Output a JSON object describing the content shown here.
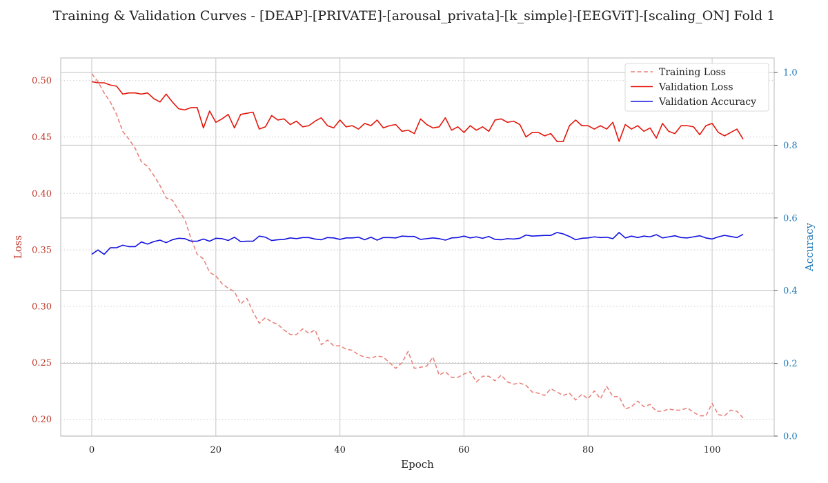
{
  "chart_data": {
    "type": "line",
    "title": "Training & Validation Curves - [DEAP]-[PRIVATE]-[arousal_privata]-[k_simple]-[EEGViT]-[scaling_ON] Fold 1",
    "xlabel": "Epoch",
    "ylabel_left": "Loss",
    "ylabel_right": "Accuracy",
    "xlim": [
      -5,
      110
    ],
    "ylim_left": [
      0.185,
      0.52
    ],
    "ylim_right": [
      0.0,
      1.04
    ],
    "xticks": [
      0,
      20,
      40,
      60,
      80,
      100
    ],
    "yticks_left": [
      0.2,
      0.25,
      0.3,
      0.35,
      0.4,
      0.45,
      0.5
    ],
    "yticks_right": [
      0.0,
      0.2,
      0.4,
      0.6,
      0.8,
      1.0
    ],
    "grid": true,
    "legend_position": "top-right",
    "x": [
      0,
      1,
      2,
      3,
      4,
      5,
      6,
      7,
      8,
      9,
      10,
      11,
      12,
      13,
      14,
      15,
      16,
      17,
      18,
      19,
      20,
      21,
      22,
      23,
      24,
      25,
      26,
      27,
      28,
      29,
      30,
      31,
      32,
      33,
      34,
      35,
      36,
      37,
      38,
      39,
      40,
      41,
      42,
      43,
      44,
      45,
      46,
      47,
      48,
      49,
      50,
      51,
      52,
      53,
      54,
      55,
      56,
      57,
      58,
      59,
      60,
      61,
      62,
      63,
      64,
      65,
      66,
      67,
      68,
      69,
      70,
      71,
      72,
      73,
      74,
      75,
      76,
      77,
      78,
      79,
      80,
      81,
      82,
      83,
      84,
      85,
      86,
      87,
      88,
      89,
      90,
      91,
      92,
      93,
      94,
      95,
      96,
      97,
      98,
      99,
      100,
      101,
      102,
      103,
      104,
      105
    ],
    "series": [
      {
        "name": "Training Loss",
        "axis": "left",
        "color": "#e8837b",
        "dash": true,
        "values": [
          0.506,
          0.499,
          0.489,
          0.481,
          0.47,
          0.455,
          0.448,
          0.44,
          0.428,
          0.424,
          0.416,
          0.407,
          0.396,
          0.394,
          0.385,
          0.377,
          0.36,
          0.346,
          0.342,
          0.33,
          0.327,
          0.32,
          0.316,
          0.313,
          0.302,
          0.307,
          0.295,
          0.285,
          0.29,
          0.286,
          0.284,
          0.279,
          0.275,
          0.275,
          0.28,
          0.276,
          0.279,
          0.266,
          0.27,
          0.265,
          0.265,
          0.262,
          0.261,
          0.257,
          0.255,
          0.254,
          0.256,
          0.255,
          0.25,
          0.245,
          0.25,
          0.26,
          0.245,
          0.246,
          0.247,
          0.255,
          0.239,
          0.242,
          0.237,
          0.237,
          0.24,
          0.242,
          0.233,
          0.238,
          0.238,
          0.234,
          0.239,
          0.233,
          0.231,
          0.232,
          0.23,
          0.224,
          0.223,
          0.221,
          0.227,
          0.224,
          0.221,
          0.223,
          0.217,
          0.222,
          0.218,
          0.225,
          0.218,
          0.229,
          0.22,
          0.22,
          0.209,
          0.211,
          0.216,
          0.211,
          0.213,
          0.207,
          0.207,
          0.209,
          0.208,
          0.208,
          0.21,
          0.206,
          0.203,
          0.203,
          0.214,
          0.204,
          0.203,
          0.208,
          0.207,
          0.201
        ]
      },
      {
        "name": "Validation Loss",
        "axis": "left",
        "color": "#e3160b",
        "dash": false,
        "values": [
          0.499,
          0.498,
          0.498,
          0.496,
          0.495,
          0.488,
          0.489,
          0.489,
          0.488,
          0.489,
          0.484,
          0.481,
          0.488,
          0.481,
          0.475,
          0.474,
          0.476,
          0.476,
          0.458,
          0.473,
          0.463,
          0.466,
          0.47,
          0.458,
          0.47,
          0.471,
          0.472,
          0.457,
          0.459,
          0.469,
          0.465,
          0.466,
          0.461,
          0.464,
          0.459,
          0.46,
          0.464,
          0.467,
          0.46,
          0.458,
          0.465,
          0.459,
          0.46,
          0.457,
          0.462,
          0.46,
          0.465,
          0.458,
          0.46,
          0.461,
          0.455,
          0.456,
          0.453,
          0.466,
          0.461,
          0.458,
          0.459,
          0.467,
          0.456,
          0.459,
          0.454,
          0.46,
          0.456,
          0.459,
          0.455,
          0.465,
          0.466,
          0.463,
          0.464,
          0.461,
          0.45,
          0.454,
          0.454,
          0.451,
          0.453,
          0.446,
          0.446,
          0.46,
          0.465,
          0.46,
          0.46,
          0.457,
          0.46,
          0.457,
          0.463,
          0.446,
          0.461,
          0.457,
          0.46,
          0.455,
          0.458,
          0.449,
          0.462,
          0.455,
          0.453,
          0.46,
          0.46,
          0.459,
          0.452,
          0.46,
          0.462,
          0.454,
          0.451,
          0.454,
          0.457,
          0.448
        ]
      },
      {
        "name": "Validation Accuracy",
        "axis": "right",
        "color": "#1010e0",
        "dash": false,
        "values": [
          0.5,
          0.512,
          0.5,
          0.518,
          0.518,
          0.525,
          0.521,
          0.521,
          0.534,
          0.528,
          0.535,
          0.539,
          0.532,
          0.54,
          0.544,
          0.543,
          0.536,
          0.536,
          0.542,
          0.536,
          0.544,
          0.543,
          0.538,
          0.547,
          0.535,
          0.536,
          0.536,
          0.55,
          0.547,
          0.538,
          0.54,
          0.541,
          0.545,
          0.543,
          0.546,
          0.546,
          0.542,
          0.54,
          0.546,
          0.545,
          0.541,
          0.545,
          0.545,
          0.547,
          0.54,
          0.547,
          0.539,
          0.546,
          0.546,
          0.545,
          0.55,
          0.549,
          0.549,
          0.541,
          0.543,
          0.545,
          0.543,
          0.539,
          0.545,
          0.546,
          0.55,
          0.545,
          0.548,
          0.544,
          0.549,
          0.541,
          0.54,
          0.543,
          0.542,
          0.544,
          0.553,
          0.55,
          0.551,
          0.552,
          0.552,
          0.56,
          0.556,
          0.549,
          0.54,
          0.544,
          0.545,
          0.548,
          0.546,
          0.547,
          0.543,
          0.56,
          0.545,
          0.55,
          0.546,
          0.55,
          0.548,
          0.554,
          0.545,
          0.548,
          0.551,
          0.546,
          0.545,
          0.548,
          0.551,
          0.545,
          0.542,
          0.548,
          0.552,
          0.549,
          0.546,
          0.555
        ]
      }
    ]
  }
}
